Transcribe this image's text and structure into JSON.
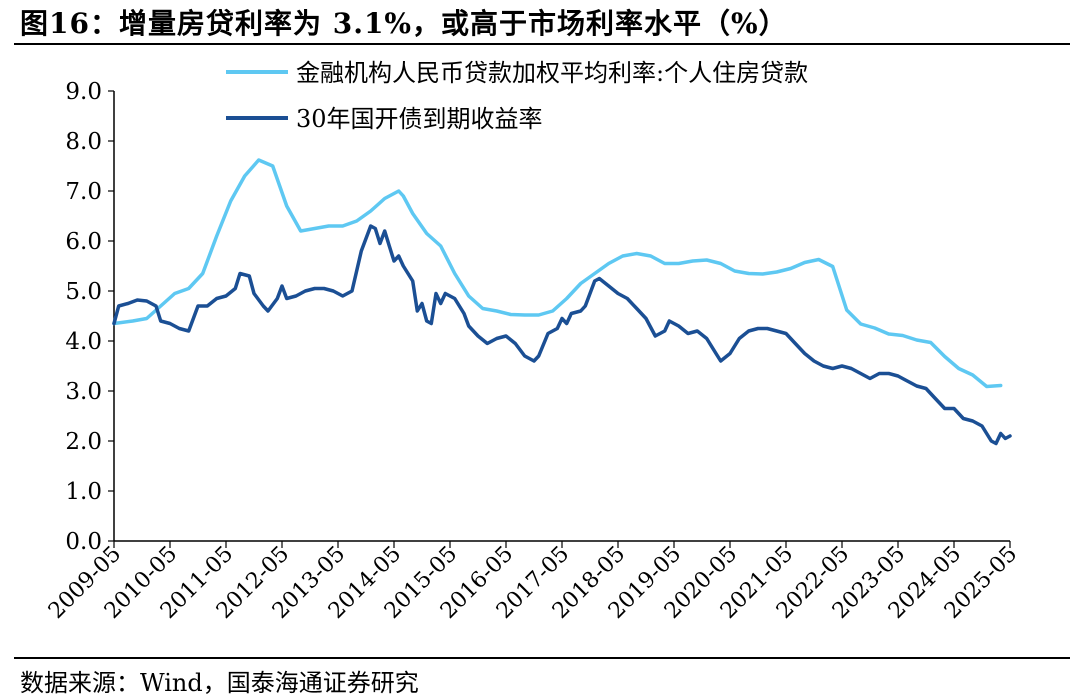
{
  "header": {
    "title": "图16：增量房贷利率为 3.1%，或高于市场利率水平（%）"
  },
  "footer": {
    "source": "数据来源：Wind，国泰海通证券研究"
  },
  "colors": {
    "mortgage": "#5ec8f2",
    "bond": "#1b4f94",
    "axis": "#000000"
  },
  "chart_data": {
    "type": "line",
    "x_ticks": [
      "2009-05",
      "2010-05",
      "2011-05",
      "2012-05",
      "2013-05",
      "2014-05",
      "2015-05",
      "2016-05",
      "2017-05",
      "2018-05",
      "2019-05",
      "2020-05",
      "2021-05",
      "2022-05",
      "2023-05",
      "2024-05",
      "2025-05"
    ],
    "y_ticks": [
      "0.0",
      "1.0",
      "2.0",
      "3.0",
      "4.0",
      "5.0",
      "6.0",
      "7.0",
      "8.0",
      "9.0"
    ],
    "ylim": [
      0,
      9
    ],
    "x_range": [
      "2009-05",
      "2025-05"
    ],
    "grid": false,
    "legend_position": "top",
    "series": [
      {
        "name": "金融机构人民币贷款加权平均利率:个人住房贷款",
        "points": [
          [
            "2009-05",
            4.35
          ],
          [
            "2009-09",
            4.4
          ],
          [
            "2009-12",
            4.45
          ],
          [
            "2010-03",
            4.7
          ],
          [
            "2010-06",
            4.95
          ],
          [
            "2010-09",
            5.05
          ],
          [
            "2010-12",
            5.35
          ],
          [
            "2011-03",
            6.1
          ],
          [
            "2011-06",
            6.8
          ],
          [
            "2011-09",
            7.3
          ],
          [
            "2011-12",
            7.62
          ],
          [
            "2012-03",
            7.5
          ],
          [
            "2012-06",
            6.7
          ],
          [
            "2012-09",
            6.2
          ],
          [
            "2012-12",
            6.25
          ],
          [
            "2013-03",
            6.3
          ],
          [
            "2013-06",
            6.3
          ],
          [
            "2013-09",
            6.4
          ],
          [
            "2013-12",
            6.6
          ],
          [
            "2014-03",
            6.85
          ],
          [
            "2014-06",
            7.0
          ],
          [
            "2014-07",
            6.9
          ],
          [
            "2014-09",
            6.55
          ],
          [
            "2014-12",
            6.15
          ],
          [
            "2015-03",
            5.9
          ],
          [
            "2015-06",
            5.35
          ],
          [
            "2015-09",
            4.9
          ],
          [
            "2015-12",
            4.65
          ],
          [
            "2016-03",
            4.6
          ],
          [
            "2016-06",
            4.53
          ],
          [
            "2016-09",
            4.52
          ],
          [
            "2016-12",
            4.52
          ],
          [
            "2017-03",
            4.6
          ],
          [
            "2017-06",
            4.85
          ],
          [
            "2017-09",
            5.15
          ],
          [
            "2017-12",
            5.35
          ],
          [
            "2018-03",
            5.55
          ],
          [
            "2018-06",
            5.7
          ],
          [
            "2018-09",
            5.75
          ],
          [
            "2018-12",
            5.7
          ],
          [
            "2019-03",
            5.55
          ],
          [
            "2019-06",
            5.55
          ],
          [
            "2019-09",
            5.6
          ],
          [
            "2019-12",
            5.62
          ],
          [
            "2020-03",
            5.55
          ],
          [
            "2020-06",
            5.4
          ],
          [
            "2020-09",
            5.35
          ],
          [
            "2020-12",
            5.34
          ],
          [
            "2021-03",
            5.38
          ],
          [
            "2021-06",
            5.45
          ],
          [
            "2021-09",
            5.57
          ],
          [
            "2021-12",
            5.63
          ],
          [
            "2022-03",
            5.49
          ],
          [
            "2022-06",
            4.62
          ],
          [
            "2022-09",
            4.34
          ],
          [
            "2022-12",
            4.26
          ],
          [
            "2023-03",
            4.14
          ],
          [
            "2023-06",
            4.11
          ],
          [
            "2023-09",
            4.02
          ],
          [
            "2023-12",
            3.97
          ],
          [
            "2024-03",
            3.69
          ],
          [
            "2024-06",
            3.45
          ],
          [
            "2024-09",
            3.32
          ],
          [
            "2024-12",
            3.09
          ],
          [
            "2025-03",
            3.11
          ]
        ]
      },
      {
        "name": "30年国开债到期收益率",
        "points": [
          [
            "2009-05",
            4.35
          ],
          [
            "2009-06",
            4.7
          ],
          [
            "2009-08",
            4.75
          ],
          [
            "2009-10",
            4.82
          ],
          [
            "2009-12",
            4.8
          ],
          [
            "2010-02",
            4.7
          ],
          [
            "2010-03",
            4.4
          ],
          [
            "2010-05",
            4.35
          ],
          [
            "2010-07",
            4.25
          ],
          [
            "2010-09",
            4.2
          ],
          [
            "2010-11",
            4.7
          ],
          [
            "2011-01",
            4.7
          ],
          [
            "2011-03",
            4.85
          ],
          [
            "2011-05",
            4.9
          ],
          [
            "2011-07",
            5.05
          ],
          [
            "2011-08",
            5.35
          ],
          [
            "2011-10",
            5.3
          ],
          [
            "2011-11",
            4.95
          ],
          [
            "2012-01",
            4.7
          ],
          [
            "2012-02",
            4.6
          ],
          [
            "2012-04",
            4.85
          ],
          [
            "2012-05",
            5.1
          ],
          [
            "2012-06",
            4.85
          ],
          [
            "2012-08",
            4.9
          ],
          [
            "2012-10",
            5.0
          ],
          [
            "2012-12",
            5.05
          ],
          [
            "2013-02",
            5.05
          ],
          [
            "2013-04",
            5.0
          ],
          [
            "2013-06",
            4.9
          ],
          [
            "2013-08",
            5.0
          ],
          [
            "2013-10",
            5.8
          ],
          [
            "2013-12",
            6.3
          ],
          [
            "2014-01",
            6.25
          ],
          [
            "2014-02",
            5.95
          ],
          [
            "2014-03",
            6.2
          ],
          [
            "2014-04",
            5.9
          ],
          [
            "2014-05",
            5.6
          ],
          [
            "2014-06",
            5.7
          ],
          [
            "2014-07",
            5.5
          ],
          [
            "2014-09",
            5.2
          ],
          [
            "2014-10",
            4.6
          ],
          [
            "2014-11",
            4.75
          ],
          [
            "2014-12",
            4.4
          ],
          [
            "2015-01",
            4.35
          ],
          [
            "2015-02",
            4.95
          ],
          [
            "2015-03",
            4.75
          ],
          [
            "2015-04",
            4.95
          ],
          [
            "2015-06",
            4.85
          ],
          [
            "2015-08",
            4.55
          ],
          [
            "2015-09",
            4.3
          ],
          [
            "2015-11",
            4.1
          ],
          [
            "2016-01",
            3.95
          ],
          [
            "2016-03",
            4.05
          ],
          [
            "2016-05",
            4.1
          ],
          [
            "2016-07",
            3.95
          ],
          [
            "2016-09",
            3.7
          ],
          [
            "2016-11",
            3.6
          ],
          [
            "2016-12",
            3.7
          ],
          [
            "2017-02",
            4.15
          ],
          [
            "2017-04",
            4.25
          ],
          [
            "2017-05",
            4.45
          ],
          [
            "2017-06",
            4.35
          ],
          [
            "2017-07",
            4.55
          ],
          [
            "2017-09",
            4.6
          ],
          [
            "2017-10",
            4.7
          ],
          [
            "2017-12",
            5.2
          ],
          [
            "2018-01",
            5.25
          ],
          [
            "2018-03",
            5.1
          ],
          [
            "2018-05",
            4.95
          ],
          [
            "2018-07",
            4.85
          ],
          [
            "2018-09",
            4.65
          ],
          [
            "2018-11",
            4.45
          ],
          [
            "2019-01",
            4.1
          ],
          [
            "2019-03",
            4.2
          ],
          [
            "2019-04",
            4.4
          ],
          [
            "2019-06",
            4.3
          ],
          [
            "2019-08",
            4.15
          ],
          [
            "2019-10",
            4.2
          ],
          [
            "2019-12",
            4.05
          ],
          [
            "2020-02",
            3.75
          ],
          [
            "2020-03",
            3.6
          ],
          [
            "2020-05",
            3.75
          ],
          [
            "2020-07",
            4.05
          ],
          [
            "2020-09",
            4.2
          ],
          [
            "2020-11",
            4.25
          ],
          [
            "2021-01",
            4.25
          ],
          [
            "2021-03",
            4.2
          ],
          [
            "2021-05",
            4.15
          ],
          [
            "2021-07",
            3.95
          ],
          [
            "2021-09",
            3.75
          ],
          [
            "2021-11",
            3.6
          ],
          [
            "2022-01",
            3.5
          ],
          [
            "2022-03",
            3.45
          ],
          [
            "2022-05",
            3.5
          ],
          [
            "2022-07",
            3.45
          ],
          [
            "2022-09",
            3.35
          ],
          [
            "2022-11",
            3.25
          ],
          [
            "2023-01",
            3.35
          ],
          [
            "2023-03",
            3.35
          ],
          [
            "2023-05",
            3.3
          ],
          [
            "2023-07",
            3.2
          ],
          [
            "2023-09",
            3.1
          ],
          [
            "2023-11",
            3.05
          ],
          [
            "2024-01",
            2.85
          ],
          [
            "2024-03",
            2.65
          ],
          [
            "2024-05",
            2.65
          ],
          [
            "2024-07",
            2.45
          ],
          [
            "2024-09",
            2.4
          ],
          [
            "2024-11",
            2.3
          ],
          [
            "2025-01",
            2.0
          ],
          [
            "2025-02",
            1.95
          ],
          [
            "2025-03",
            2.15
          ],
          [
            "2025-04",
            2.05
          ],
          [
            "2025-05",
            2.1
          ]
        ]
      }
    ]
  }
}
